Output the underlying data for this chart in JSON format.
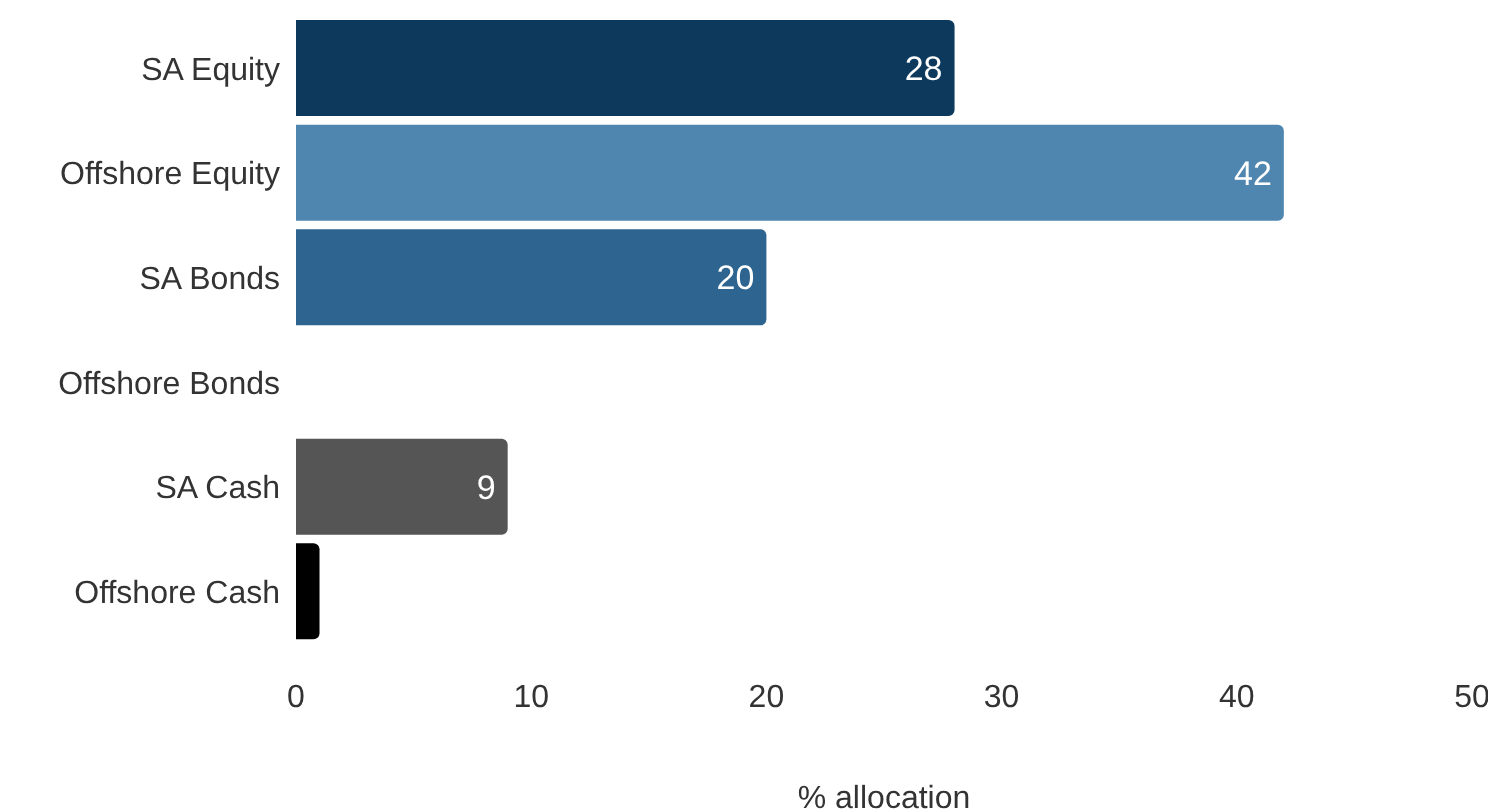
{
  "chart_data": {
    "type": "bar",
    "orientation": "horizontal",
    "xlabel": "% allocation",
    "categories": [
      "SA Equity",
      "Offshore Equity",
      "SA Bonds",
      "Offshore Bonds",
      "SA Cash",
      "Offshore Cash"
    ],
    "values": [
      28,
      42,
      20,
      0,
      9,
      1
    ],
    "colors": [
      "#0d3a5c",
      "#4f86b0",
      "#2e6590",
      "#3a78a8",
      "#555555",
      "#000000"
    ],
    "value_labels": [
      "28",
      "42",
      "20",
      null,
      "9",
      null
    ],
    "xlim": [
      0,
      50
    ],
    "xticks": [
      0,
      10,
      20,
      30,
      40,
      50
    ],
    "grid": false
  }
}
